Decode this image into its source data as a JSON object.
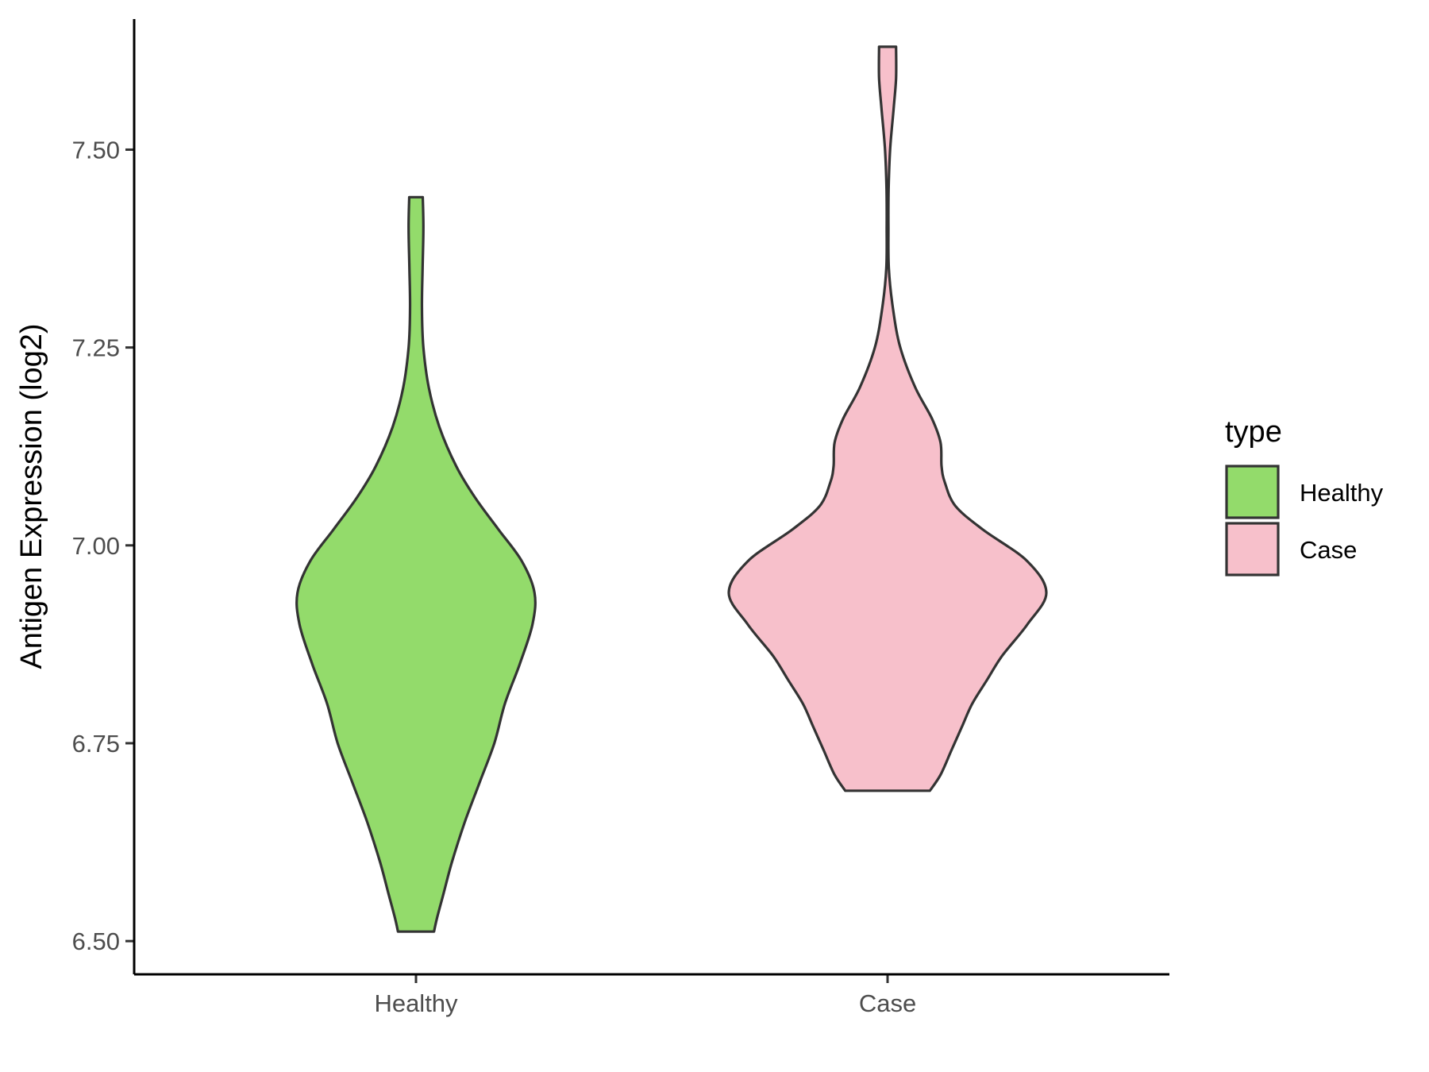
{
  "chart_data": {
    "type": "violin",
    "title": "",
    "xlabel": "",
    "ylabel": "Antigen Expression (log2)",
    "ylim": [
      6.458,
      7.665
    ],
    "y_ticks": [
      "6.50",
      "6.75",
      "7.00",
      "7.25",
      "7.50"
    ],
    "y_tick_values": [
      6.5,
      6.75,
      7.0,
      7.25,
      7.5
    ],
    "grid": false,
    "legend": {
      "title": "type",
      "placement": "right",
      "entries": [
        {
          "label": "Healthy",
          "color": "#93DB6B"
        },
        {
          "label": "Case",
          "color": "#F7C0CB"
        }
      ]
    },
    "categories": [
      "Healthy",
      "Case"
    ],
    "series": [
      {
        "name": "Healthy",
        "color": "#93DB6B",
        "min": 6.512,
        "max": 7.44,
        "density_profile": [
          [
            6.512,
            0.085
          ],
          [
            6.53,
            0.1
          ],
          [
            6.56,
            0.13
          ],
          [
            6.6,
            0.17
          ],
          [
            6.65,
            0.23
          ],
          [
            6.7,
            0.3
          ],
          [
            6.75,
            0.37
          ],
          [
            6.8,
            0.42
          ],
          [
            6.85,
            0.49
          ],
          [
            6.9,
            0.55
          ],
          [
            6.94,
            0.56
          ],
          [
            6.98,
            0.5
          ],
          [
            7.02,
            0.39
          ],
          [
            7.06,
            0.28
          ],
          [
            7.1,
            0.19
          ],
          [
            7.15,
            0.11
          ],
          [
            7.2,
            0.06
          ],
          [
            7.25,
            0.035
          ],
          [
            7.3,
            0.028
          ],
          [
            7.35,
            0.031
          ],
          [
            7.4,
            0.035
          ],
          [
            7.44,
            0.032
          ]
        ]
      },
      {
        "name": "Case",
        "color": "#F7C0CB",
        "min": 6.69,
        "max": 7.63,
        "density_profile": [
          [
            6.69,
            0.2
          ],
          [
            6.71,
            0.25
          ],
          [
            6.74,
            0.3
          ],
          [
            6.77,
            0.35
          ],
          [
            6.8,
            0.4
          ],
          [
            6.83,
            0.47
          ],
          [
            6.86,
            0.54
          ],
          [
            6.9,
            0.66
          ],
          [
            6.94,
            0.75
          ],
          [
            6.98,
            0.66
          ],
          [
            7.02,
            0.45
          ],
          [
            7.05,
            0.32
          ],
          [
            7.08,
            0.27
          ],
          [
            7.1,
            0.255
          ],
          [
            7.13,
            0.25
          ],
          [
            7.16,
            0.21
          ],
          [
            7.2,
            0.13
          ],
          [
            7.25,
            0.06
          ],
          [
            7.3,
            0.025
          ],
          [
            7.35,
            0.006
          ],
          [
            7.4,
            0.004
          ],
          [
            7.45,
            0.005
          ],
          [
            7.5,
            0.012
          ],
          [
            7.55,
            0.028
          ],
          [
            7.59,
            0.04
          ],
          [
            7.63,
            0.04
          ]
        ]
      }
    ]
  }
}
